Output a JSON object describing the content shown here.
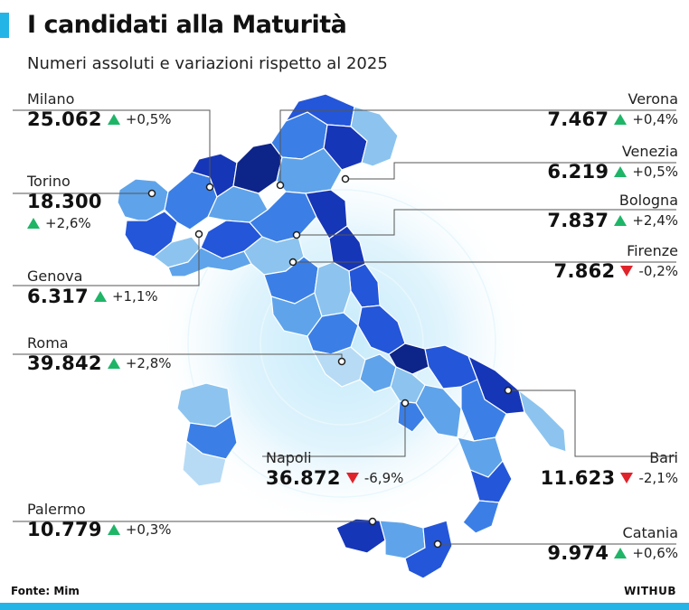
{
  "header": {
    "title": "I candidati alla Maturità",
    "subtitle": "Numeri assoluti e variazioni rispetto al 2025"
  },
  "colors": {
    "accent": "#25b4e6",
    "up": "#1fb567",
    "down": "#e0232b",
    "map_shades": [
      "#dceefa",
      "#b7dbf5",
      "#8cc4ef",
      "#5fa4ea",
      "#3b7fe6",
      "#2456d9",
      "#1636b8",
      "#0d2488"
    ],
    "halo": "#cfeefb"
  },
  "cities": [
    {
      "name": "Milano",
      "value": "25.062",
      "delta": "+0,5%",
      "trend": "up"
    },
    {
      "name": "Torino",
      "value": "18.300",
      "delta": "+2,6%",
      "trend": "up"
    },
    {
      "name": "Genova",
      "value": "6.317",
      "delta": "+1,1%",
      "trend": "up"
    },
    {
      "name": "Roma",
      "value": "39.842",
      "delta": "+2,8%",
      "trend": "up"
    },
    {
      "name": "Napoli",
      "value": "36.872",
      "delta": "-6,9%",
      "trend": "down"
    },
    {
      "name": "Palermo",
      "value": "10.779",
      "delta": "+0,3%",
      "trend": "up"
    },
    {
      "name": "Verona",
      "value": "7.467",
      "delta": "+0,4%",
      "trend": "up"
    },
    {
      "name": "Venezia",
      "value": "6.219",
      "delta": "+0,5%",
      "trend": "up"
    },
    {
      "name": "Bologna",
      "value": "7.837",
      "delta": "+2,4%",
      "trend": "up"
    },
    {
      "name": "Firenze",
      "value": "7.862",
      "delta": "-0,2%",
      "trend": "down"
    },
    {
      "name": "Bari",
      "value": "11.623",
      "delta": "-2,1%",
      "trend": "down"
    },
    {
      "name": "Catania",
      "value": "9.974",
      "delta": "+0,6%",
      "trend": "up"
    }
  ],
  "footer": {
    "source": "Fonte: Mim",
    "brand": "WITHUB"
  }
}
